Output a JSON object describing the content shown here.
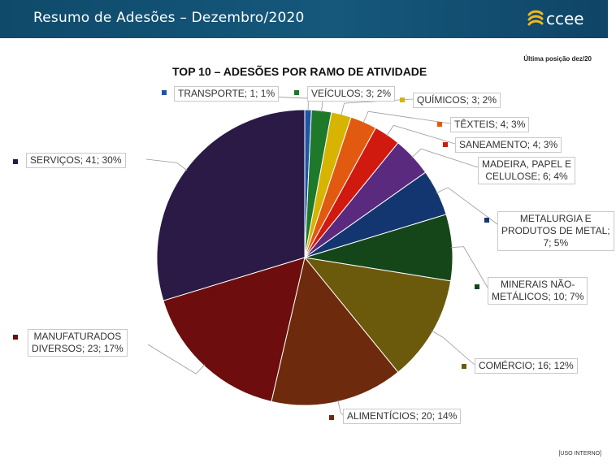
{
  "header": {
    "title": "Resumo de Adesões – Dezembro/2020",
    "logo_text": "ccee",
    "logo_icon": "ccee-wave-logo-icon"
  },
  "position_note": "Última posição dez/20",
  "footer_note": "[USO INTERNO]",
  "colors": {
    "header_bg": "#15587c",
    "TRANSPORTE": "#1f55a8",
    "VEÍCULOS": "#1e7a2a",
    "QUÍMICOS": "#d6b400",
    "TÊXTEIS": "#e25a10",
    "SANEAMENTO": "#d01a10",
    "MADEIRA": "#5a2a7e",
    "METALURGIA": "#143670",
    "MINERAIS": "#15461a",
    "COMÉRCIO": "#6b5a0c",
    "ALIMENTÍCIOS": "#6e2a0c",
    "MANUFATURADOS": "#6e0d0d",
    "SERVIÇOS": "#2a1a45"
  },
  "chart_data": {
    "type": "pie",
    "title": "TOP 10 – ADESÕES POR RAMO DE ATIVIDADE",
    "slices": [
      {
        "name": "TRANSPORTE",
        "value": 1,
        "percent": 1,
        "label": "TRANSPORTE; 1; 1%"
      },
      {
        "name": "VEÍCULOS",
        "value": 3,
        "percent": 2,
        "label": "VEÍCULOS; 3; 2%"
      },
      {
        "name": "QUÍMICOS",
        "value": 3,
        "percent": 2,
        "label": "QUÍMICOS; 3; 2%"
      },
      {
        "name": "TÊXTEIS",
        "value": 4,
        "percent": 3,
        "label": "TÊXTEIS; 4; 3%"
      },
      {
        "name": "SANEAMENTO",
        "value": 4,
        "percent": 3,
        "label": "SANEAMENTO; 4; 3%"
      },
      {
        "name": "MADEIRA, PAPEL E CELULOSE",
        "value": 6,
        "percent": 4,
        "label": "MADEIRA, PAPEL E\nCELULOSE; 6; 4%"
      },
      {
        "name": "METALURGIA E PRODUTOS DE METAL",
        "value": 7,
        "percent": 5,
        "label": "METALURGIA E\nPRODUTOS DE METAL;\n7; 5%"
      },
      {
        "name": "MINERAIS NÃO-METÁLICOS",
        "value": 10,
        "percent": 7,
        "label": "MINERAIS NÃO-\nMETÁLICOS; 10; 7%"
      },
      {
        "name": "COMÉRCIO",
        "value": 16,
        "percent": 12,
        "label": "COMÉRCIO; 16; 12%"
      },
      {
        "name": "ALIMENTÍCIOS",
        "value": 20,
        "percent": 14,
        "label": "ALIMENTÍCIOS; 20; 14%"
      },
      {
        "name": "MANUFATURADOS DIVERSOS",
        "value": 23,
        "percent": 17,
        "label": "MANUFATURADOS\nDIVERSOS; 23; 17%"
      },
      {
        "name": "SERVIÇOS",
        "value": 41,
        "percent": 30,
        "label": "SERVIÇOS; 41; 30%"
      }
    ],
    "start": "12 o'clock",
    "direction": "clockwise",
    "legend": "none"
  }
}
